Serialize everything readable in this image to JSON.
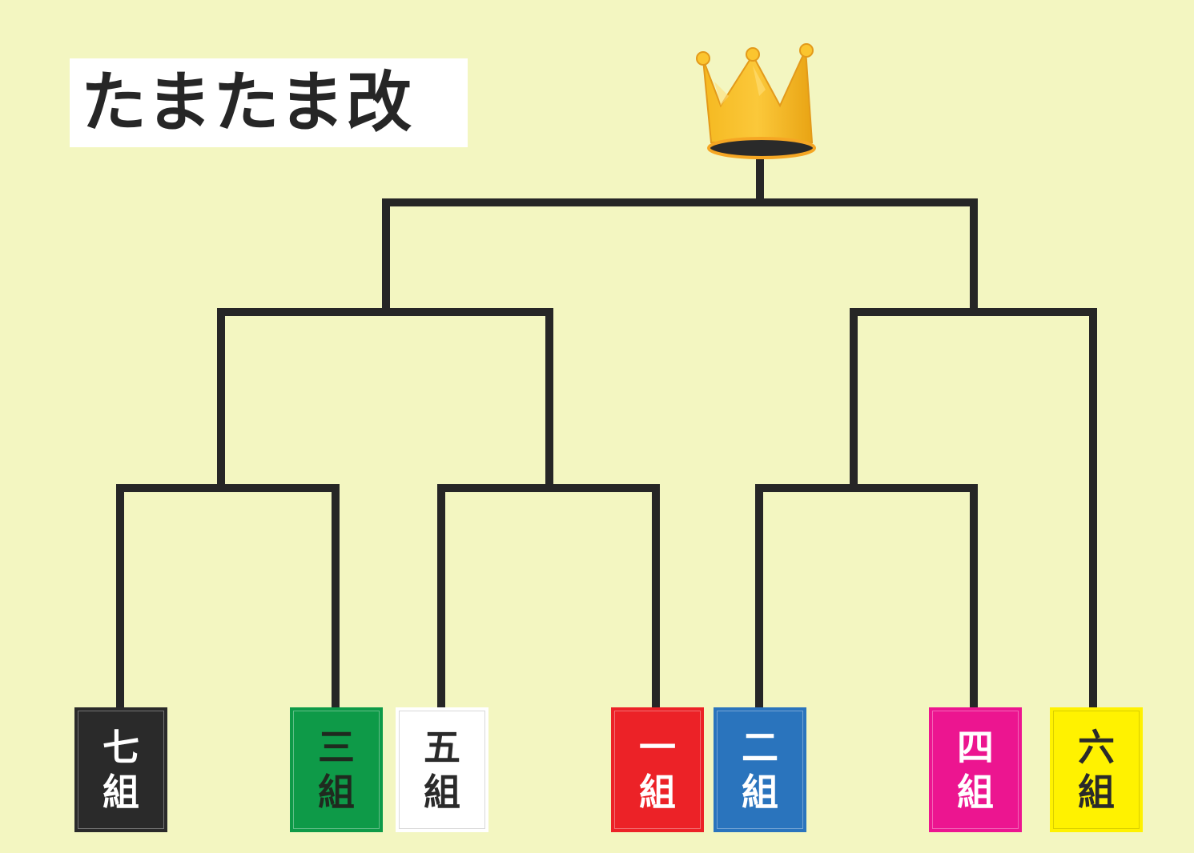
{
  "title": "たまたま改",
  "colors": {
    "background": "#f3f6c1",
    "line": "#262626",
    "crown_gold": "#f5b921"
  },
  "teams": [
    {
      "name": "七",
      "suffix": "組",
      "bg": "#2a2a2a",
      "fg": "#ffffff"
    },
    {
      "name": "三",
      "suffix": "組",
      "bg": "#0e9a48",
      "fg": "#1f2a1f"
    },
    {
      "name": "五",
      "suffix": "組",
      "bg": "#ffffff",
      "fg": "#2a2a2a"
    },
    {
      "name": "一",
      "suffix": "組",
      "bg": "#ec2227",
      "fg": "#ffffff"
    },
    {
      "name": "二",
      "suffix": "組",
      "bg": "#2a74bd",
      "fg": "#ffffff"
    },
    {
      "name": "四",
      "suffix": "組",
      "bg": "#ec1590",
      "fg": "#ffffff"
    },
    {
      "name": "六",
      "suffix": "組",
      "bg": "#fff200",
      "fg": "#2a2a2a"
    }
  ],
  "icons": {
    "crown": "crown-icon"
  }
}
